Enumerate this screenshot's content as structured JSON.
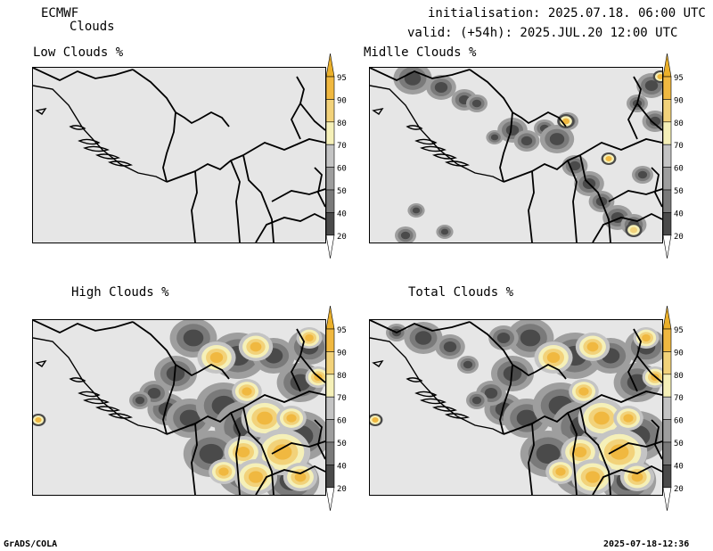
{
  "header": {
    "model": "ECMWF",
    "product": "Clouds",
    "initialisation": "initialisation: 2025.07.18. 06:00 UTC",
    "valid": "valid: (+54h): 2025.JUL.20 12:00 UTC"
  },
  "panels": [
    {
      "title": "Low Clouds %",
      "coverage": "none"
    },
    {
      "title": "Midlle Clouds %",
      "coverage": "scattered"
    },
    {
      "title": "High Clouds %",
      "coverage": "extensive"
    },
    {
      "title": "Total Clouds %",
      "coverage": "extensive"
    }
  ],
  "colorbar": {
    "levels": [
      "20",
      "40",
      "50",
      "60",
      "70",
      "80",
      "90",
      "95"
    ],
    "colors": [
      "#ffffff",
      "#4a4a4a",
      "#7a7a7a",
      "#9e9e9e",
      "#c4c4c4",
      "#f5f0b8",
      "#f2d27a",
      "#f0b840",
      "#ebb02a"
    ]
  },
  "footer": {
    "left": "GrADS/COLA",
    "right": "2025-07-18-12:36"
  }
}
